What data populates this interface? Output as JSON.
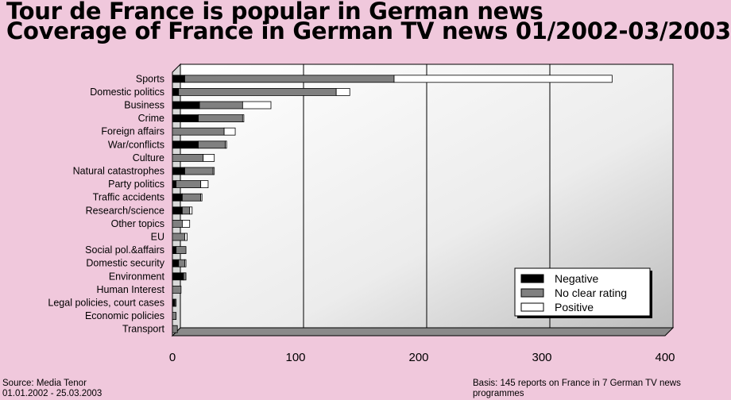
{
  "title": {
    "line1": "Tour de France is popular in German news",
    "line2": "Coverage of France in German TV news 01/2002-03/2003"
  },
  "footer": {
    "source": "Source: Media Tenor",
    "dates": "01.01.2002 - 25.03.2003",
    "basis": "Basis: 145 reports on France in 7 German TV news programmes"
  },
  "colors": {
    "negative": "#000000",
    "neutral": "#808080",
    "positive": "#ffffff",
    "background": "#f0c8dc"
  },
  "chart_data": {
    "type": "bar",
    "orientation": "horizontal",
    "stacked": true,
    "xlim": [
      0,
      400
    ],
    "xticks": [
      0,
      100,
      200,
      300,
      400
    ],
    "grid": true,
    "legend_position": "bottom-right",
    "categories": [
      "Sports",
      "Domestic politics",
      "Business",
      "Crime",
      "Foreign affairs",
      "War/conflicts",
      "Culture",
      "Natural catastrophes",
      "Party politics",
      "Traffic accidents",
      "Research/science",
      "Other topics",
      "EU",
      "Social pol.&affairs",
      "Domestic security",
      "Environment",
      "Human Interest",
      "Legal policies, court cases",
      "Economic policies",
      "Transport"
    ],
    "series": [
      {
        "name": "Negative",
        "color": "#000000",
        "values": [
          10,
          5,
          22,
          21,
          0,
          21,
          0,
          10,
          3,
          8,
          8,
          0,
          0,
          3,
          5,
          9,
          0,
          2,
          0,
          0
        ]
      },
      {
        "name": "No clear rating",
        "color": "#808080",
        "values": [
          170,
          128,
          35,
          36,
          42,
          22,
          25,
          23,
          20,
          15,
          6,
          8,
          10,
          8,
          5,
          2,
          7,
          1,
          3,
          4
        ]
      },
      {
        "name": "Positive",
        "color": "#ffffff",
        "values": [
          177,
          11,
          23,
          1,
          9,
          1,
          9,
          1,
          6,
          1,
          2,
          6,
          2,
          0,
          1,
          0,
          0,
          0,
          0,
          0
        ]
      }
    ]
  }
}
